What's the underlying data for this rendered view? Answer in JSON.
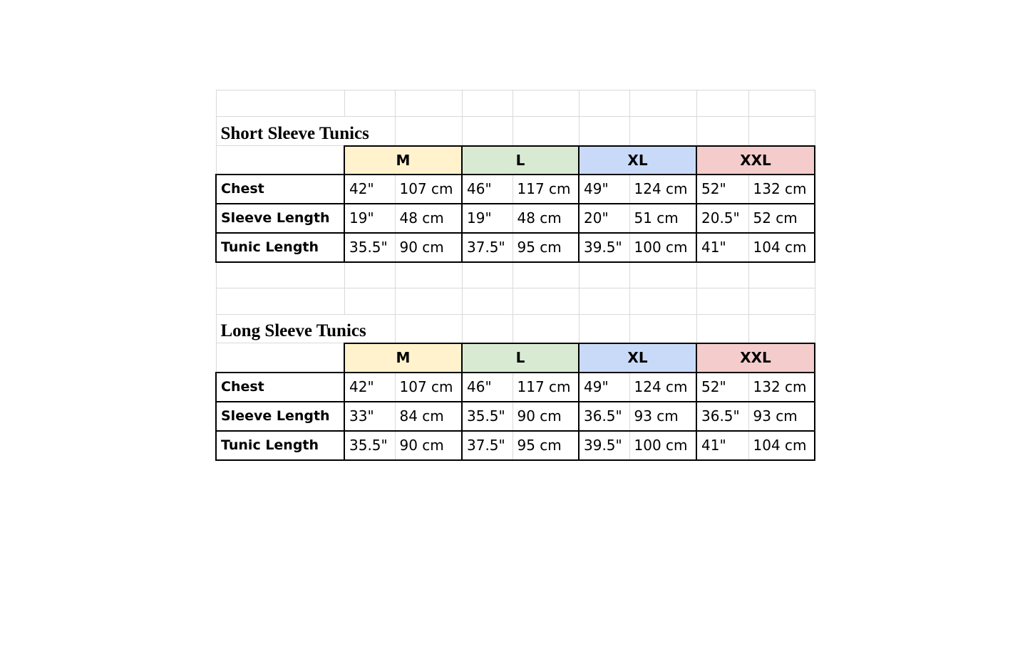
{
  "colors": {
    "M": "#fff2cc",
    "L": "#d9ead3",
    "XL": "#c9daf8",
    "XXL": "#f4cccc"
  },
  "sections": [
    {
      "title": "Short Sleeve Tunics",
      "sizes": [
        "M",
        "L",
        "XL",
        "XXL"
      ],
      "rows": [
        {
          "label": "Chest",
          "values": [
            "42\"",
            "107 cm",
            "46\"",
            "117 cm",
            "49\"",
            "124 cm",
            "52\"",
            "132 cm"
          ]
        },
        {
          "label": "Sleeve Length",
          "values": [
            "19\"",
            "48 cm",
            "19\"",
            "48 cm",
            "20\"",
            "51 cm",
            "20.5\"",
            "52 cm"
          ]
        },
        {
          "label": "Tunic Length",
          "values": [
            "35.5\"",
            "90 cm",
            "37.5\"",
            "95 cm",
            "39.5\"",
            "100 cm",
            "41\"",
            "104 cm"
          ]
        }
      ]
    },
    {
      "title": "Long Sleeve Tunics",
      "sizes": [
        "M",
        "L",
        "XL",
        "XXL"
      ],
      "rows": [
        {
          "label": "Chest",
          "values": [
            "42\"",
            "107 cm",
            "46\"",
            "117 cm",
            "49\"",
            "124 cm",
            "52\"",
            "132 cm"
          ]
        },
        {
          "label": "Sleeve Length",
          "values": [
            "33\"",
            "84 cm",
            "35.5\"",
            "90 cm",
            "36.5\"",
            "93 cm",
            "36.5\"",
            "93 cm"
          ]
        },
        {
          "label": "Tunic Length",
          "values": [
            "35.5\"",
            "90 cm",
            "37.5\"",
            "95 cm",
            "39.5\"",
            "100 cm",
            "41\"",
            "104 cm"
          ]
        }
      ]
    }
  ]
}
